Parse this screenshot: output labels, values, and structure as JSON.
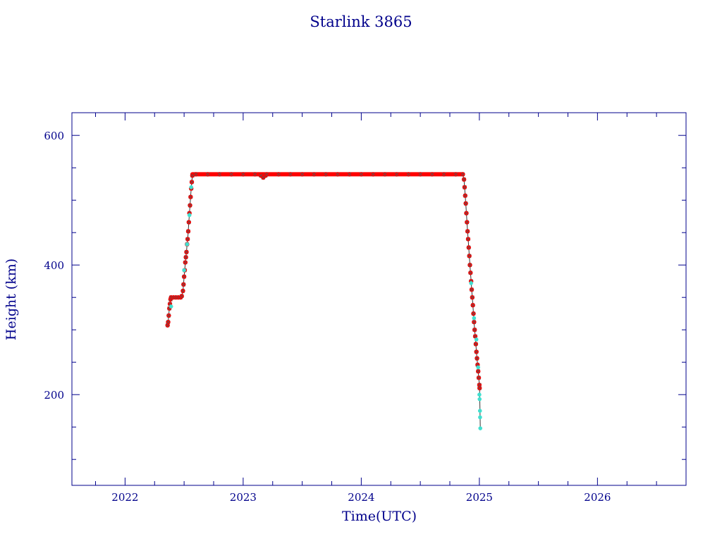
{
  "chart_data": {
    "type": "scatter",
    "title": "Starlink 3865",
    "xlabel": "Time(UTC)",
    "ylabel": "Height (km)",
    "xlim": [
      2021.55,
      2026.75
    ],
    "ylim": [
      60,
      635
    ],
    "x_ticks": [
      2022,
      2023,
      2024,
      2025,
      2026
    ],
    "x_tick_labels": [
      "2022",
      "2023",
      "2024",
      "2025",
      "2026"
    ],
    "y_ticks": [
      200,
      400,
      600
    ],
    "y_tick_labels": [
      "200",
      "400",
      "600"
    ],
    "grid": false,
    "legend": "none",
    "colors": {
      "axes": "#00008b",
      "text": "#00008b",
      "series_main": "#ff0000",
      "series_alt": "#40e0d0",
      "marker_cross": "#555555"
    },
    "series": [
      {
        "values": [
          [
            2022.36,
            307
          ],
          [
            2022.365,
            312
          ],
          [
            2022.37,
            322
          ],
          [
            2022.375,
            333
          ],
          [
            2022.38,
            340
          ],
          [
            2022.385,
            347
          ],
          [
            2022.39,
            350
          ],
          [
            2022.41,
            350
          ],
          [
            2022.43,
            350
          ],
          [
            2022.45,
            350
          ],
          [
            2022.47,
            350
          ],
          [
            2022.48,
            352
          ],
          [
            2022.49,
            360
          ],
          [
            2022.495,
            370
          ],
          [
            2022.5,
            382
          ],
          [
            2022.505,
            392
          ],
          [
            2022.51,
            404
          ],
          [
            2022.515,
            412
          ],
          [
            2022.52,
            420
          ],
          [
            2022.525,
            432
          ],
          [
            2022.53,
            440
          ],
          [
            2022.535,
            452
          ],
          [
            2022.54,
            466
          ],
          [
            2022.545,
            480
          ],
          [
            2022.55,
            492
          ],
          [
            2022.555,
            505
          ],
          [
            2022.56,
            518
          ],
          [
            2022.565,
            528
          ],
          [
            2022.57,
            538
          ],
          [
            2022.6,
            540
          ],
          [
            2022.7,
            540
          ],
          [
            2022.8,
            540
          ],
          [
            2022.9,
            540
          ],
          [
            2023.0,
            540
          ],
          [
            2023.1,
            540
          ],
          [
            2023.15,
            538
          ],
          [
            2023.17,
            535
          ],
          [
            2023.19,
            538
          ],
          [
            2023.2,
            540
          ],
          [
            2023.3,
            540
          ],
          [
            2023.4,
            540
          ],
          [
            2023.5,
            540
          ],
          [
            2023.6,
            540
          ],
          [
            2023.7,
            540
          ],
          [
            2023.8,
            540
          ],
          [
            2023.9,
            540
          ],
          [
            2024.0,
            540
          ],
          [
            2024.1,
            540
          ],
          [
            2024.2,
            540
          ],
          [
            2024.3,
            540
          ],
          [
            2024.4,
            540
          ],
          [
            2024.5,
            540
          ],
          [
            2024.6,
            540
          ],
          [
            2024.7,
            540
          ],
          [
            2024.8,
            540
          ],
          [
            2024.86,
            540
          ],
          [
            2024.87,
            532
          ],
          [
            2024.875,
            520
          ],
          [
            2024.88,
            507
          ],
          [
            2024.885,
            495
          ],
          [
            2024.89,
            480
          ],
          [
            2024.895,
            466
          ],
          [
            2024.9,
            452
          ],
          [
            2024.905,
            440
          ],
          [
            2024.91,
            427
          ],
          [
            2024.915,
            414
          ],
          [
            2024.92,
            400
          ],
          [
            2024.925,
            388
          ],
          [
            2024.93,
            375
          ],
          [
            2024.935,
            362
          ],
          [
            2024.94,
            350
          ],
          [
            2024.945,
            338
          ],
          [
            2024.95,
            325
          ],
          [
            2024.955,
            312
          ],
          [
            2024.96,
            300
          ],
          [
            2024.965,
            290
          ],
          [
            2024.97,
            278
          ],
          [
            2024.975,
            266
          ],
          [
            2024.98,
            256
          ],
          [
            2024.985,
            246
          ],
          [
            2024.99,
            236
          ],
          [
            2024.995,
            226
          ],
          [
            2025.0,
            215
          ],
          [
            2025.002,
            210
          ]
        ]
      },
      {
        "values": [
          [
            2022.39,
            336
          ],
          [
            2022.5,
            392
          ],
          [
            2022.525,
            432
          ],
          [
            2022.545,
            477
          ],
          [
            2022.56,
            520
          ],
          [
            2024.93,
            372
          ],
          [
            2024.955,
            318
          ],
          [
            2024.975,
            285
          ],
          [
            2024.99,
            242
          ],
          [
            2025.0,
            200
          ],
          [
            2025.002,
            193
          ],
          [
            2025.005,
            175
          ],
          [
            2025.006,
            165
          ],
          [
            2025.008,
            148
          ]
        ]
      }
    ]
  }
}
